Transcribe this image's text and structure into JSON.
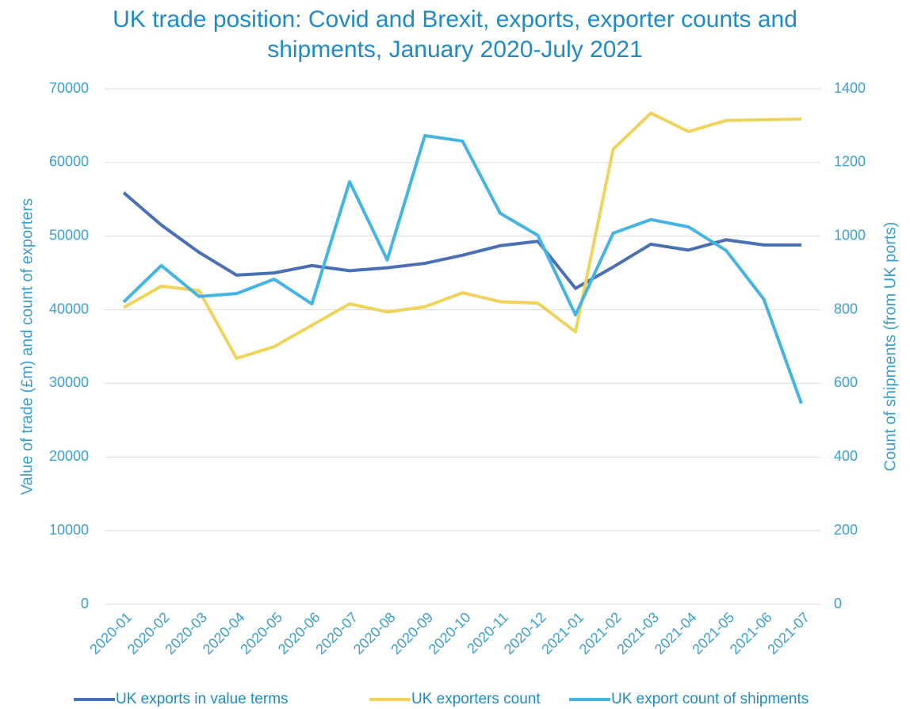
{
  "chart_data": {
    "type": "line",
    "title": "UK trade position: Covid and Brexit, exports, exporter counts and shipments, January 2020-July 2021",
    "ylabel": "Value of trade (£m) and count of exporters",
    "y2label": "Count of shipments (from UK ports)",
    "categories": [
      "2020-01",
      "2020-02",
      "2020-03",
      "2020-04",
      "2020-05",
      "2020-06",
      "2020-07",
      "2020-08",
      "2020-09",
      "2020-10",
      "2020-11",
      "2020-12",
      "2021-01",
      "2021-02",
      "2021-03",
      "2021-04",
      "2021-05",
      "2021-06",
      "2021-07"
    ],
    "series": [
      {
        "name": "UK exports in value terms",
        "color": "#4a6fb5",
        "values": [
          55900,
          51500,
          47800,
          44700,
          45000,
          46000,
          45300,
          45700,
          46300,
          47400,
          48700,
          49300,
          42900,
          45800,
          48900,
          48100,
          49500,
          48800,
          48800
        ]
      },
      {
        "name": "UK exporters count",
        "color": "#efd35a",
        "values": [
          40300,
          43200,
          42600,
          33400,
          35000,
          37900,
          40800,
          39700,
          40400,
          42300,
          41100,
          40900,
          37000,
          61800,
          66700,
          64200,
          65700,
          65800,
          65900
        ]
      },
      {
        "name": "UK export count of shipments",
        "color": "#45b4e3",
        "axis": "y2",
        "values": [
          821,
          920,
          836,
          844,
          883,
          816,
          1148,
          935,
          1273,
          1258,
          1062,
          1002,
          786,
          1008,
          1045,
          1025,
          961,
          829,
          545
        ]
      }
    ],
    "ylim": [
      0,
      70000
    ],
    "yticks": [
      0,
      10000,
      20000,
      30000,
      40000,
      50000,
      60000,
      70000
    ],
    "y2lim": [
      0,
      1400
    ],
    "y2ticks": [
      0,
      200,
      400,
      600,
      800,
      1000,
      1200,
      1400
    ],
    "grid": true,
    "legend": "bottom"
  }
}
